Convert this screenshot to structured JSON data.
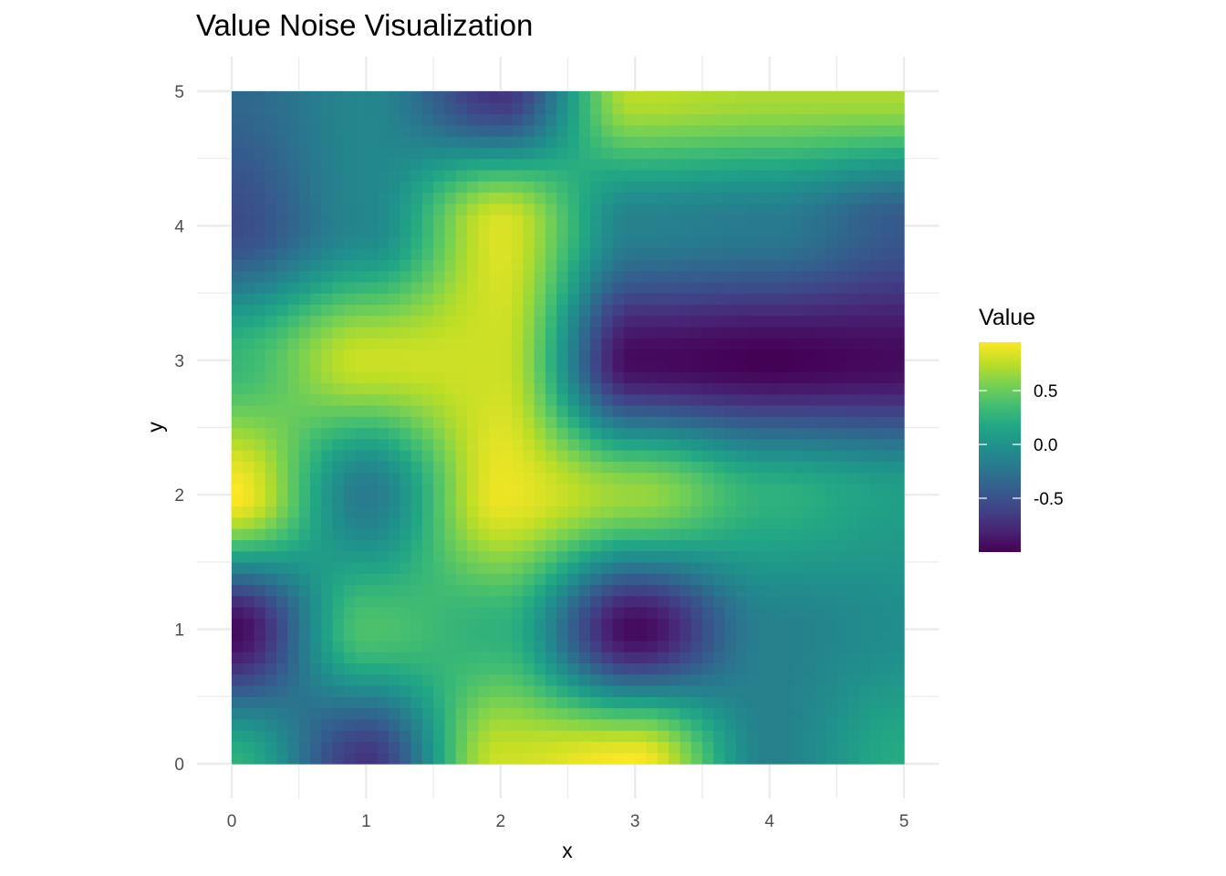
{
  "chart_data": {
    "type": "heatmap",
    "title": "Value Noise Visualization",
    "xlabel": "x",
    "ylabel": "y",
    "xlim": [
      0,
      5
    ],
    "ylim": [
      0,
      5
    ],
    "x_ticks": [
      "0",
      "1",
      "2",
      "3",
      "4",
      "5"
    ],
    "y_ticks": [
      "0",
      "1",
      "2",
      "3",
      "4",
      "5"
    ],
    "x": [
      0,
      1,
      2,
      3,
      4,
      5
    ],
    "y": [
      0,
      1,
      2,
      3,
      4,
      5
    ],
    "z": [
      [
        0.25,
        -0.7,
        0.8,
        0.95,
        -0.15,
        0.2
      ],
      [
        -0.95,
        0.4,
        0.25,
        -0.95,
        -0.15,
        -0.05
      ],
      [
        0.95,
        -0.2,
        0.9,
        0.65,
        0.25,
        0.1
      ],
      [
        0.3,
        0.8,
        0.8,
        -0.95,
        -1.0,
        -0.95
      ],
      [
        -0.55,
        -0.1,
        0.85,
        -0.15,
        -0.2,
        -0.45
      ],
      [
        -0.35,
        -0.1,
        -0.7,
        0.75,
        0.7,
        0.7
      ]
    ],
    "interpolation": "smooth",
    "grid": true,
    "legend": {
      "title": "Value",
      "position": "right",
      "breaks": [
        0.5,
        0.0,
        -0.5
      ],
      "labels": [
        "0.5",
        "0.0",
        "-0.5"
      ],
      "range": [
        -1.0,
        0.95
      ]
    },
    "colormap": "viridis",
    "colors": [
      "#440154",
      "#3b528b",
      "#21918c",
      "#5ec962",
      "#fde725"
    ]
  }
}
